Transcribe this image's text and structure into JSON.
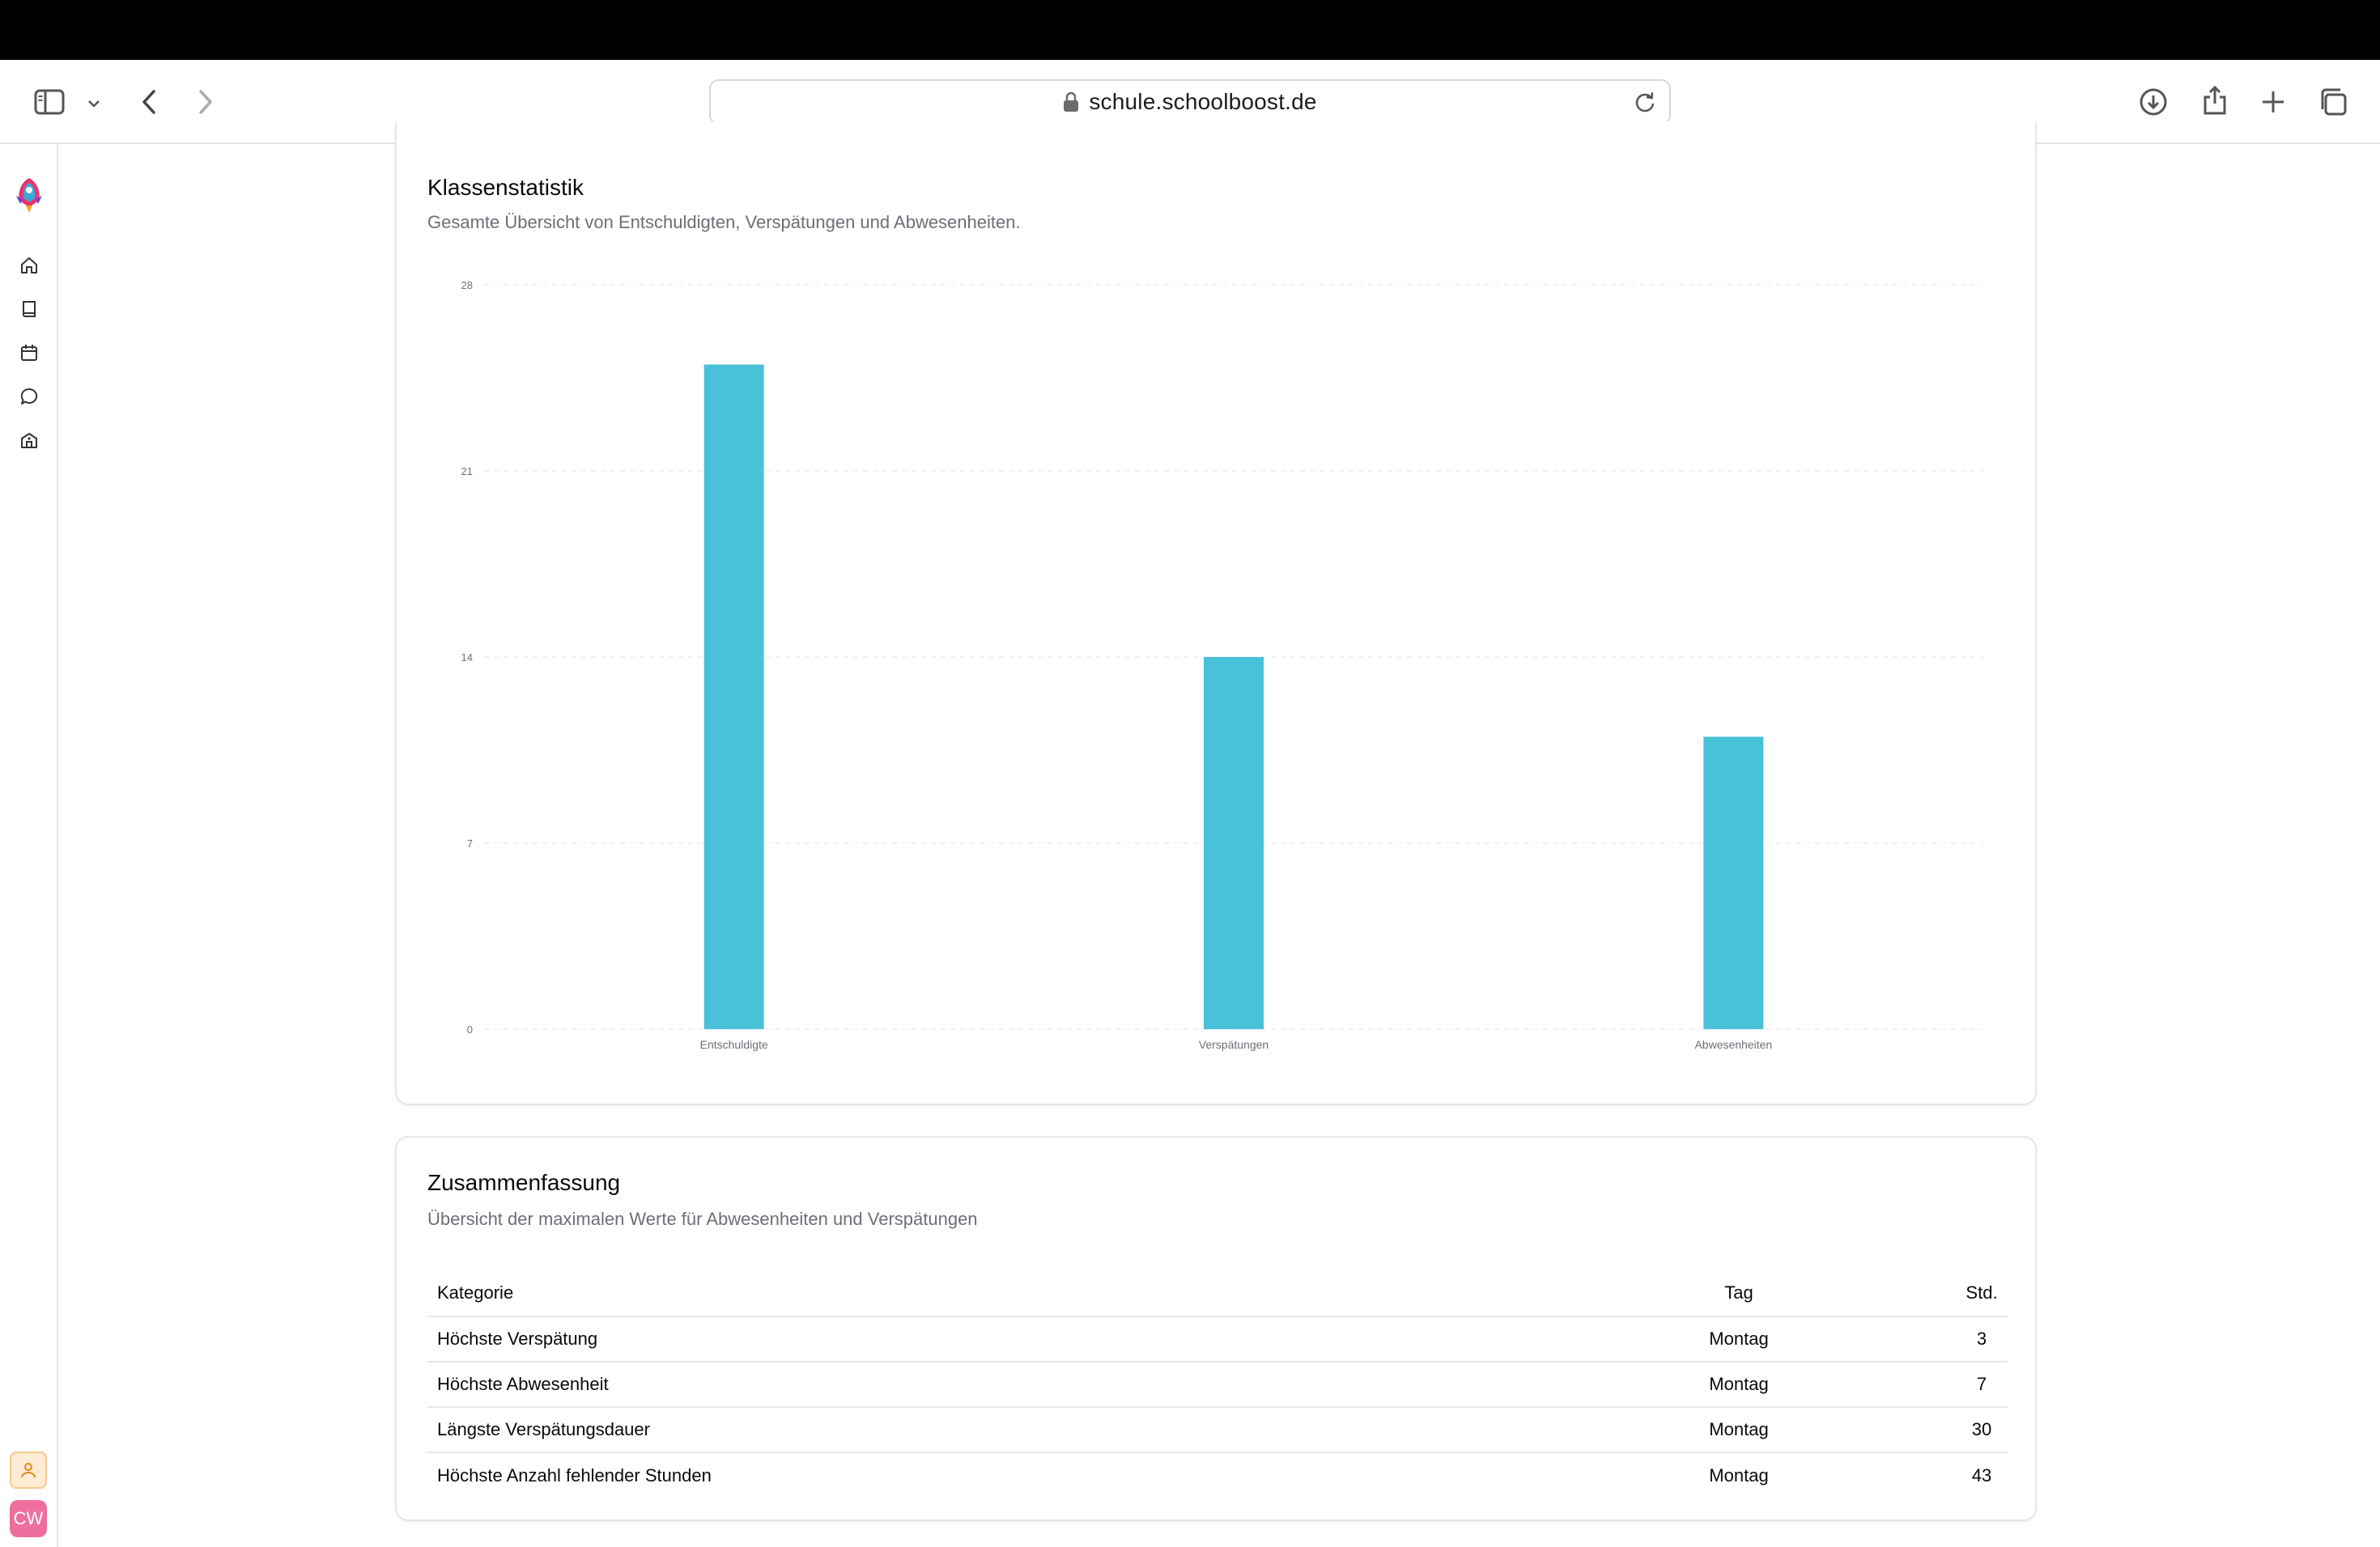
{
  "browser": {
    "url": "schule.schoolboost.de"
  },
  "sidebar": {
    "avatar_initials": "CW",
    "items": [
      {
        "icon": "home-icon"
      },
      {
        "icon": "book-icon"
      },
      {
        "icon": "calendar-icon"
      },
      {
        "icon": "chat-icon"
      },
      {
        "icon": "school-icon"
      }
    ]
  },
  "stats_card": {
    "title": "Klassenstatistik",
    "subtitle": "Gesamte Übersicht von Entschuldigten, Verspätungen und Abwesenheiten."
  },
  "chart_data": {
    "type": "bar",
    "categories": [
      "Entschuldigte",
      "Verspätungen",
      "Abwesenheiten"
    ],
    "values": [
      25,
      14,
      11
    ],
    "yticks": [
      "0",
      "7",
      "14",
      "21",
      "28"
    ],
    "ylim": [
      0,
      28
    ],
    "grid": true,
    "bar_color": "#48c1d9"
  },
  "summary_card": {
    "title": "Zusammenfassung",
    "subtitle": "Übersicht der maximalen Werte für Abwesenheiten und Verspätungen",
    "columns": {
      "kategorie": "Kategorie",
      "tag": "Tag",
      "std": "Std."
    },
    "rows": [
      {
        "kategorie": "Höchste Verspätung",
        "tag": "Montag",
        "std": "3"
      },
      {
        "kategorie": "Höchste Abwesenheit",
        "tag": "Montag",
        "std": "7"
      },
      {
        "kategorie": "Längste Verspätungsdauer",
        "tag": "Montag",
        "std": "30"
      },
      {
        "kategorie": "Höchste Anzahl fehlender Stunden",
        "tag": "Montag",
        "std": "43"
      }
    ]
  }
}
